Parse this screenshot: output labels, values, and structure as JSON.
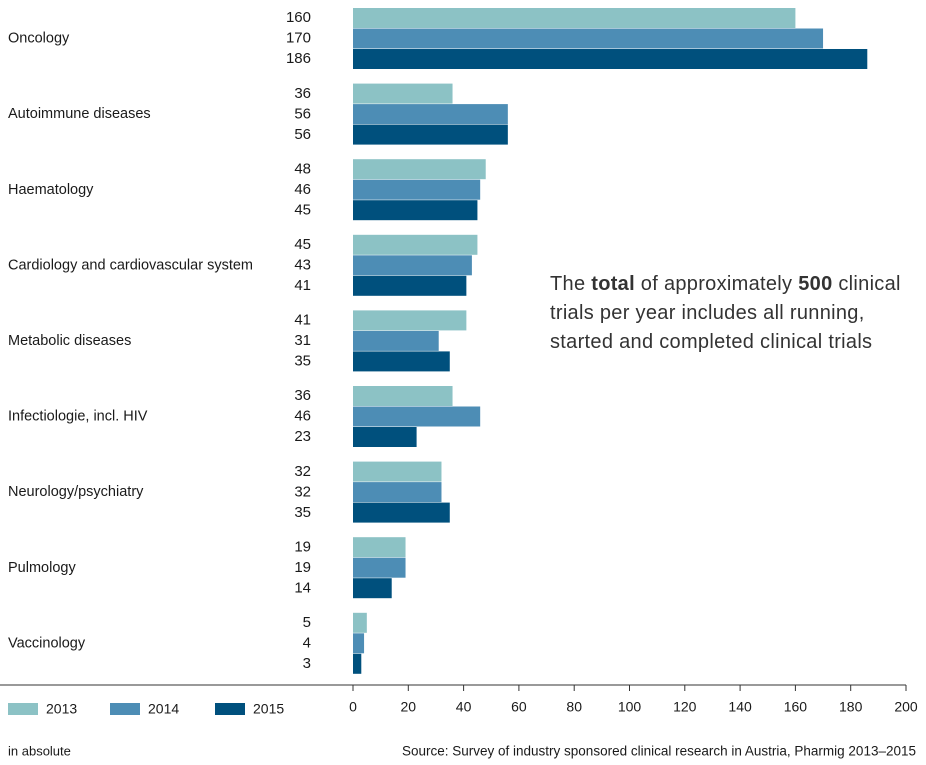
{
  "chart_data": {
    "type": "bar",
    "orientation": "horizontal",
    "categories": [
      "Oncology",
      "Autoimmune diseases",
      "Haematology",
      "Cardiology and cardiovascular system",
      "Metabolic diseases",
      "Infectiologie, incl. HIV",
      "Neurology/psychiatry",
      "Pulmology",
      "Vaccinology"
    ],
    "series": [
      {
        "name": "2013",
        "color": "#8cc2c5",
        "values": [
          160,
          36,
          48,
          45,
          41,
          36,
          32,
          19,
          5
        ]
      },
      {
        "name": "2014",
        "color": "#4d8db5",
        "values": [
          170,
          56,
          46,
          43,
          31,
          46,
          32,
          19,
          4
        ]
      },
      {
        "name": "2015",
        "color": "#00507d",
        "values": [
          186,
          56,
          45,
          41,
          35,
          23,
          35,
          14,
          3
        ]
      }
    ],
    "xlim": [
      0,
      200
    ],
    "xticks": [
      0,
      20,
      40,
      60,
      80,
      100,
      120,
      140,
      160,
      180,
      200
    ],
    "annotation": [
      {
        "text": "The "
      },
      {
        "text": "total",
        "bold": true
      },
      {
        "text": " of approximately "
      },
      {
        "text": "500",
        "bold": true
      },
      {
        "text": " clinical trials per year includes all running, started and completed clinical trials"
      }
    ],
    "axis_note": "in absolute",
    "source": "Source: Survey of industry sponsored clinical research in Austria, Pharmig 2013–2015"
  }
}
